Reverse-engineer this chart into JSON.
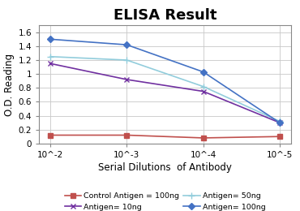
{
  "title": "ELISA Result",
  "xlabel": "Serial Dilutions  of Antibody",
  "ylabel": "O.D. Reading",
  "x_tick_labels": [
    "10^-2",
    "10^-3",
    "10^-4",
    "10^-5"
  ],
  "series": [
    {
      "label": "Control Antigen = 100ng",
      "color": "#c0504d",
      "marker": "s",
      "markersize": 4,
      "linestyle": "-",
      "values": [
        0.12,
        0.12,
        0.08,
        0.1
      ]
    },
    {
      "label": "Antigen= 10ng",
      "color": "#7030a0",
      "marker": "x",
      "markersize": 5,
      "linestyle": "-",
      "values": [
        1.15,
        0.92,
        0.75,
        0.3
      ]
    },
    {
      "label": "Antigen= 50ng",
      "color": "#92cddc",
      "marker": "+",
      "markersize": 6,
      "linestyle": "-",
      "values": [
        1.25,
        1.2,
        0.82,
        0.32
      ]
    },
    {
      "label": "Antigen= 100ng",
      "color": "#4472c4",
      "marker": "D",
      "markersize": 4,
      "linestyle": "-",
      "values": [
        1.5,
        1.42,
        1.03,
        0.3
      ]
    }
  ],
  "ylim": [
    0,
    1.7
  ],
  "yticks": [
    0.0,
    0.2,
    0.4,
    0.6,
    0.8,
    1.0,
    1.2,
    1.4,
    1.6
  ],
  "background_color": "#ffffff",
  "grid_color": "#c8c8c8",
  "title_fontsize": 13,
  "label_fontsize": 8.5,
  "tick_fontsize": 7.5,
  "legend_fontsize": 6.8
}
